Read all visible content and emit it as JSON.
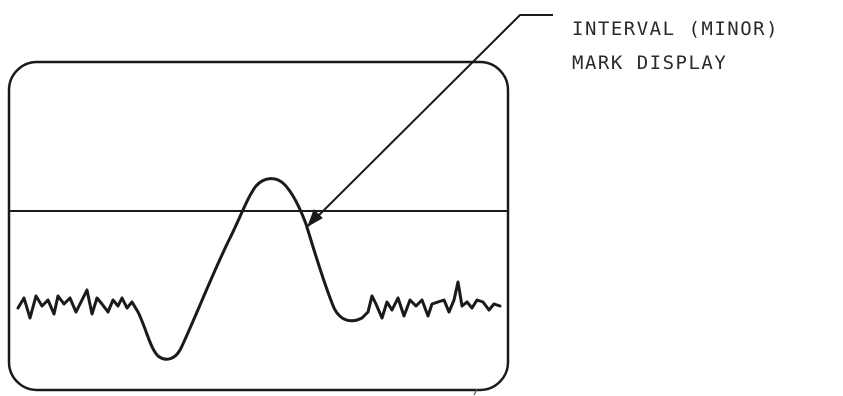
{
  "diagram": {
    "callout": {
      "line_1": "INTERVAL (MINOR)",
      "line_2": "MARK DISPLAY"
    }
  },
  "colors": {
    "ink": "#1a1a1a",
    "paper": "#ffffff"
  }
}
